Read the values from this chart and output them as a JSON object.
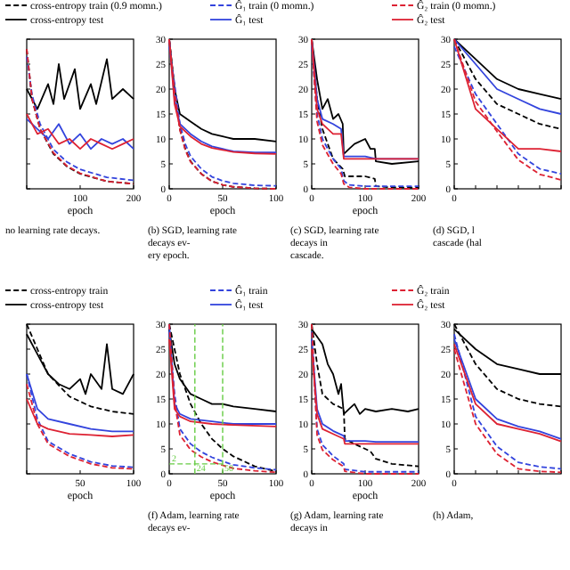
{
  "chart_data": [
    {
      "type": "line",
      "xlim": [
        0,
        200
      ],
      "ylim": [
        0,
        30
      ],
      "xticks": [
        {
          "value": 0,
          "label": null
        },
        100,
        200
      ],
      "yticks": [
        0,
        5,
        10,
        15,
        20,
        25,
        30
      ],
      "tick_labels": "x",
      "xlabel": "epoch",
      "annotations": [
        "no learning rate decays."
      ],
      "series": [
        {
          "color": "#000000",
          "line_style": "dashed",
          "x": [
            0,
            10,
            25,
            50,
            75,
            100,
            150,
            200
          ],
          "values": [
            28,
            18,
            12,
            7,
            4.5,
            3,
            1.5,
            1
          ]
        },
        {
          "color": "#000000",
          "line_style": "solid",
          "x": [
            0,
            20,
            40,
            50,
            60,
            70,
            90,
            100,
            120,
            130,
            150,
            160,
            180,
            200
          ],
          "values": [
            20,
            16,
            21,
            17,
            25,
            18,
            24,
            16,
            21,
            17,
            26,
            18,
            20,
            18
          ]
        },
        {
          "color": "#3344dd",
          "line_style": "dashed",
          "x": [
            0,
            10,
            25,
            50,
            75,
            100,
            150,
            200
          ],
          "values": [
            26.5,
            18.8,
            13,
            7.9,
            5.4,
            3.9,
            2.3,
            1.7
          ]
        },
        {
          "color": "#3344dd",
          "line_style": "solid",
          "x": [
            0,
            20,
            40,
            60,
            80,
            100,
            120,
            140,
            160,
            180,
            200
          ],
          "values": [
            14,
            12,
            10,
            13,
            9,
            11,
            8,
            10,
            9,
            10,
            8
          ]
        },
        {
          "color": "#dd2233",
          "line_style": "dashed",
          "x": [
            0,
            10,
            25,
            50,
            75,
            100,
            150,
            200
          ],
          "values": [
            28,
            18,
            12,
            7.2,
            4.6,
            3.1,
            1.5,
            1
          ]
        },
        {
          "color": "#dd2233",
          "line_style": "solid",
          "x": [
            0,
            20,
            40,
            60,
            80,
            100,
            120,
            140,
            160,
            180,
            200
          ],
          "values": [
            15,
            11,
            12,
            9,
            10,
            8,
            10,
            9,
            8,
            9,
            10
          ]
        }
      ]
    },
    {
      "type": "line",
      "xlim": [
        0,
        100
      ],
      "ylim": [
        0,
        30
      ],
      "xticks": [
        0,
        50,
        100
      ],
      "yticks": [
        0,
        5,
        10,
        15,
        20,
        25,
        30
      ],
      "xlabel": "epoch",
      "annotations": [
        "(b) SGD, learning rate decays ev-",
        "ery epoch."
      ],
      "series": [
        {
          "color": "#000000",
          "line_style": "dashed",
          "x": [
            0,
            5,
            10,
            15,
            20,
            30,
            40,
            50,
            60,
            80,
            100
          ],
          "values": [
            30,
            20,
            12,
            8,
            5.5,
            3,
            1.5,
            0.8,
            0.4,
            0.1,
            0
          ]
        },
        {
          "color": "#000000",
          "line_style": "solid",
          "x": [
            0,
            5,
            10,
            20,
            30,
            40,
            50,
            60,
            80,
            100
          ],
          "values": [
            30,
            20,
            15,
            13.5,
            12,
            11,
            10.5,
            10,
            10,
            9.5
          ]
        },
        {
          "color": "#3344dd",
          "line_style": "dashed",
          "x": [
            0,
            5,
            10,
            15,
            20,
            30,
            40,
            50,
            60,
            80,
            100
          ],
          "values": [
            28.5,
            21,
            13,
            9,
            6.5,
            4,
            2.4,
            1.6,
            1.1,
            0.7,
            0.6
          ]
        },
        {
          "color": "#3344dd",
          "line_style": "solid",
          "x": [
            0,
            5,
            10,
            20,
            30,
            40,
            50,
            60,
            80,
            100
          ],
          "values": [
            30,
            18,
            13,
            11,
            9.5,
            8.5,
            8,
            7.5,
            7.3,
            7.3
          ]
        },
        {
          "color": "#dd2233",
          "line_style": "dashed",
          "x": [
            0,
            5,
            10,
            15,
            20,
            30,
            40,
            50,
            60,
            80,
            100
          ],
          "values": [
            30,
            19.5,
            11.8,
            7.8,
            5.4,
            3,
            1.5,
            0.8,
            0.4,
            0.1,
            0
          ]
        },
        {
          "color": "#dd2233",
          "line_style": "solid",
          "x": [
            0,
            5,
            10,
            20,
            30,
            40,
            50,
            60,
            80,
            100
          ],
          "values": [
            30,
            17,
            12.5,
            10.5,
            9,
            8.2,
            7.8,
            7.4,
            7.1,
            7
          ]
        }
      ]
    },
    {
      "type": "line",
      "xlim": [
        0,
        200
      ],
      "ylim": [
        0,
        30
      ],
      "xticks": [
        0,
        100,
        200
      ],
      "yticks": [
        0,
        5,
        10,
        15,
        20,
        25,
        30
      ],
      "xlabel": "epoch",
      "legend": "top",
      "annotations": [
        "(c) SGD, learning rate decays in",
        "cascade."
      ],
      "series": [
        {
          "name": "cross-entropy train (0.9 momn.)",
          "color": "#000000",
          "line_style": "dashed",
          "x": [
            0,
            10,
            20,
            40,
            58,
            62,
            80,
            100,
            118,
            120,
            150,
            200
          ],
          "values": [
            30,
            18,
            12,
            6,
            4,
            2.5,
            2.5,
            2.5,
            2,
            0.5,
            0.3,
            0.2
          ]
        },
        {
          "name": "cross-entropy test",
          "color": "#000000",
          "line_style": "solid",
          "x": [
            0,
            10,
            20,
            30,
            40,
            50,
            58,
            60,
            70,
            80,
            100,
            110,
            118,
            120,
            150,
            200
          ],
          "values": [
            30,
            22,
            16,
            18,
            14,
            15,
            13,
            7,
            8,
            9,
            10,
            8,
            8,
            5.5,
            5,
            5.5
          ]
        },
        {
          "name": "Ĝ₁ train (0 momn.)",
          "color": "#3344dd",
          "line_style": "dashed",
          "x": [
            0,
            10,
            20,
            40,
            55,
            60,
            70,
            100,
            200
          ],
          "values": [
            28.5,
            15,
            10,
            6,
            4,
            1.6,
            0.8,
            0.5,
            0.5
          ]
        },
        {
          "name": "Ĝ₁ test",
          "color": "#3344dd",
          "line_style": "solid",
          "x": [
            0,
            10,
            20,
            40,
            55,
            60,
            100,
            120,
            200
          ],
          "values": [
            30,
            18,
            14,
            13,
            12,
            6.5,
            6.5,
            6,
            6
          ]
        },
        {
          "name": "Ĝ₂ train (0 momn.)",
          "color": "#dd2233",
          "line_style": "dashed",
          "x": [
            0,
            10,
            20,
            40,
            55,
            60,
            70,
            100,
            200
          ],
          "values": [
            30,
            13.5,
            8.8,
            5,
            3,
            1,
            0.3,
            0,
            0
          ]
        },
        {
          "name": "Ĝ₂ test",
          "color": "#dd2233",
          "line_style": "solid",
          "x": [
            0,
            10,
            20,
            40,
            55,
            60,
            100,
            120,
            200
          ],
          "values": [
            30,
            16,
            13,
            11,
            11,
            6,
            6,
            6,
            6
          ]
        }
      ]
    },
    {
      "type": "line",
      "categories": [
        "0",
        null,
        null,
        null,
        null,
        null
      ],
      "ylim": [
        0,
        30
      ],
      "yticks": [
        0,
        5,
        10,
        15,
        20,
        25,
        30
      ],
      "annotations": [
        "(d) SGD, l",
        "cascade (hal"
      ],
      "series": [
        {
          "color": "#000000",
          "line_style": "dashed",
          "values": [
            30,
            22,
            17,
            15,
            13,
            12
          ]
        },
        {
          "color": "#000000",
          "line_style": "solid",
          "values": [
            30,
            26,
            22,
            20,
            19,
            18
          ]
        },
        {
          "color": "#3344dd",
          "line_style": "dashed",
          "values": [
            28.5,
            19,
            13,
            7,
            4,
            3
          ]
        },
        {
          "color": "#3344dd",
          "line_style": "solid",
          "values": [
            30,
            25,
            20,
            18,
            16,
            15
          ]
        },
        {
          "color": "#dd2233",
          "line_style": "dashed",
          "values": [
            30,
            17.5,
            11.5,
            5.8,
            2.9,
            1.8
          ]
        },
        {
          "color": "#dd2233",
          "line_style": "solid",
          "values": [
            30,
            16,
            12,
            8,
            8,
            7.5
          ]
        }
      ]
    },
    {
      "type": "line",
      "xlim": [
        0,
        100
      ],
      "ylim": [
        0,
        30
      ],
      "xticks": [
        {
          "value": 0,
          "label": null
        },
        50,
        100
      ],
      "yticks": [
        0,
        5,
        10,
        15,
        20,
        25,
        30
      ],
      "tick_labels": "x",
      "xlabel": "epoch",
      "series": [
        {
          "color": "#000000",
          "line_style": "dashed",
          "x": [
            0,
            10,
            20,
            40,
            60,
            80,
            100
          ],
          "values": [
            30,
            25,
            20,
            15.5,
            13.5,
            12.5,
            12
          ]
        },
        {
          "color": "#000000",
          "line_style": "solid",
          "x": [
            0,
            10,
            20,
            30,
            40,
            50,
            55,
            60,
            70,
            75,
            80,
            90,
            100
          ],
          "values": [
            28,
            24,
            20,
            18,
            17,
            19,
            16,
            20,
            17,
            26,
            17,
            16,
            20
          ]
        },
        {
          "color": "#3344dd",
          "line_style": "dashed",
          "x": [
            0,
            10,
            20,
            40,
            60,
            80,
            100
          ],
          "values": [
            20,
            11,
            6.5,
            4,
            2.4,
            1.6,
            1.3
          ]
        },
        {
          "color": "#3344dd",
          "line_style": "solid",
          "x": [
            0,
            10,
            20,
            40,
            60,
            80,
            100
          ],
          "values": [
            20,
            13,
            11,
            10,
            9,
            8.5,
            8.5
          ]
        },
        {
          "color": "#dd2233",
          "line_style": "dashed",
          "x": [
            0,
            10,
            20,
            40,
            60,
            80,
            100
          ],
          "values": [
            18,
            10,
            6,
            3.5,
            2,
            1.2,
            1
          ]
        },
        {
          "color": "#dd2233",
          "line_style": "solid",
          "x": [
            0,
            10,
            20,
            40,
            60,
            80,
            100
          ],
          "values": [
            15,
            10,
            9,
            8,
            7.8,
            7.5,
            7.8
          ]
        }
      ]
    },
    {
      "type": "line",
      "xlim": [
        0,
        100
      ],
      "ylim": [
        0,
        30
      ],
      "xticks": [
        0,
        50,
        100
      ],
      "yticks": [
        0,
        5,
        10,
        15,
        20,
        25,
        30
      ],
      "xlabel": "epoch",
      "legend": "top",
      "annotations": [
        "(f) Adam, learning rate decays ev-"
      ],
      "ref_lines": [
        {
          "axis": "y",
          "value": 2,
          "label": "2",
          "color": "#66cc44",
          "line_style": "dashed"
        },
        {
          "axis": "x",
          "value": 24,
          "label": "24",
          "color": "#66cc44",
          "line_style": "dashed"
        },
        {
          "axis": "x",
          "value": 50,
          "label": "50",
          "color": "#66cc44",
          "line_style": "dashed"
        }
      ],
      "series": [
        {
          "name": "cross-entropy train",
          "color": "#000000",
          "line_style": "dashed",
          "x": [
            0,
            5,
            10,
            20,
            30,
            40,
            50,
            60,
            80,
            100
          ],
          "values": [
            30,
            25,
            20,
            14,
            10,
            7,
            5,
            3.5,
            1.5,
            0.5
          ]
        },
        {
          "name": "cross-entropy test",
          "color": "#000000",
          "line_style": "solid",
          "x": [
            0,
            5,
            10,
            20,
            30,
            40,
            50,
            60,
            80,
            100
          ],
          "values": [
            29,
            22,
            19,
            16,
            15,
            14,
            14,
            13.5,
            13,
            12.5
          ]
        },
        {
          "name": "Ĝ₁ train",
          "color": "#3344dd",
          "line_style": "dashed",
          "x": [
            0,
            5,
            10,
            20,
            30,
            40,
            50,
            60,
            80,
            100
          ],
          "values": [
            28.5,
            16,
            9,
            6,
            4.4,
            3.3,
            2.5,
            1.8,
            1.2,
            0.8
          ]
        },
        {
          "name": "Ĝ₁ test",
          "color": "#3344dd",
          "line_style": "solid",
          "x": [
            0,
            5,
            10,
            20,
            40,
            60,
            100
          ],
          "values": [
            30,
            14,
            12,
            11,
            10.5,
            10,
            10
          ]
        },
        {
          "name": "Ĝ₂ train",
          "color": "#dd2233",
          "line_style": "dashed",
          "x": [
            0,
            5,
            10,
            20,
            30,
            40,
            50,
            60,
            80,
            100
          ],
          "values": [
            30,
            14.5,
            7.8,
            4.8,
            3.4,
            2.4,
            1.7,
            1.1,
            0.6,
            0.3
          ]
        },
        {
          "name": "Ĝ₂ test",
          "color": "#dd2233",
          "line_style": "solid",
          "x": [
            0,
            5,
            10,
            20,
            40,
            60,
            100
          ],
          "values": [
            27,
            13,
            11.5,
            10.5,
            10,
            9.8,
            9.5
          ]
        }
      ]
    },
    {
      "type": "line",
      "xlim": [
        0,
        200
      ],
      "ylim": [
        0,
        30
      ],
      "xticks": [
        0,
        100,
        200
      ],
      "yticks": [
        0,
        5,
        10,
        15,
        20,
        25,
        30
      ],
      "xlabel": "epoch",
      "annotations": [
        "(g) Adam, learning rate decays in"
      ],
      "series": [
        {
          "color": "#000000",
          "line_style": "dashed",
          "x": [
            0,
            10,
            20,
            40,
            60,
            62,
            80,
            100,
            110,
            120,
            150,
            200
          ],
          "values": [
            30,
            22,
            16,
            14,
            13,
            7,
            6,
            5,
            4.5,
            3,
            2,
            1.5
          ]
        },
        {
          "color": "#000000",
          "line_style": "solid",
          "x": [
            0,
            20,
            30,
            40,
            50,
            55,
            60,
            70,
            80,
            90,
            100,
            120,
            150,
            180,
            200
          ],
          "values": [
            29,
            26,
            22,
            20,
            16,
            18,
            12,
            13,
            14,
            12,
            13,
            12.5,
            13,
            12.5,
            13
          ]
        },
        {
          "color": "#3344dd",
          "line_style": "dashed",
          "x": [
            0,
            10,
            20,
            40,
            60,
            62,
            100,
            200
          ],
          "values": [
            28.5,
            9,
            5.8,
            3.6,
            2,
            0.9,
            0.4,
            0.4
          ]
        },
        {
          "color": "#3344dd",
          "line_style": "solid",
          "x": [
            0,
            10,
            20,
            40,
            60,
            62,
            100,
            120,
            200
          ],
          "values": [
            27,
            13,
            10,
            8.6,
            7.6,
            6.6,
            6.6,
            6.4,
            6.4
          ]
        },
        {
          "color": "#dd2233",
          "line_style": "dashed",
          "x": [
            0,
            10,
            20,
            40,
            60,
            62,
            100,
            200
          ],
          "values": [
            30,
            7.8,
            4.8,
            2.8,
            1.4,
            0.5,
            0,
            0
          ]
        },
        {
          "color": "#dd2233",
          "line_style": "solid",
          "x": [
            0,
            10,
            20,
            40,
            60,
            62,
            100,
            120,
            200
          ],
          "values": [
            25,
            12,
            9,
            8,
            7,
            6,
            6,
            6,
            6
          ]
        }
      ]
    },
    {
      "type": "line",
      "categories": [
        "0",
        null,
        null,
        null,
        null,
        null
      ],
      "ylim": [
        0,
        30
      ],
      "yticks": [
        0,
        5,
        10,
        15,
        20,
        25,
        30
      ],
      "annotations": [
        "(h) Adam,"
      ],
      "series": [
        {
          "color": "#000000",
          "line_style": "dashed",
          "values": [
            30,
            22,
            17,
            15,
            14,
            13.5
          ]
        },
        {
          "color": "#000000",
          "line_style": "solid",
          "values": [
            29,
            25,
            22,
            21,
            20,
            20
          ]
        },
        {
          "color": "#3344dd",
          "line_style": "dashed",
          "values": [
            28,
            11.5,
            5.5,
            2.3,
            1.4,
            1
          ]
        },
        {
          "color": "#3344dd",
          "line_style": "solid",
          "values": [
            27,
            15,
            11,
            9.5,
            8.5,
            7
          ]
        },
        {
          "color": "#dd2233",
          "line_style": "dashed",
          "values": [
            25,
            10,
            4,
            1,
            0.5,
            0.3
          ]
        },
        {
          "color": "#dd2233",
          "line_style": "solid",
          "values": [
            26,
            14,
            10,
            9,
            8,
            6.5
          ]
        }
      ]
    }
  ]
}
